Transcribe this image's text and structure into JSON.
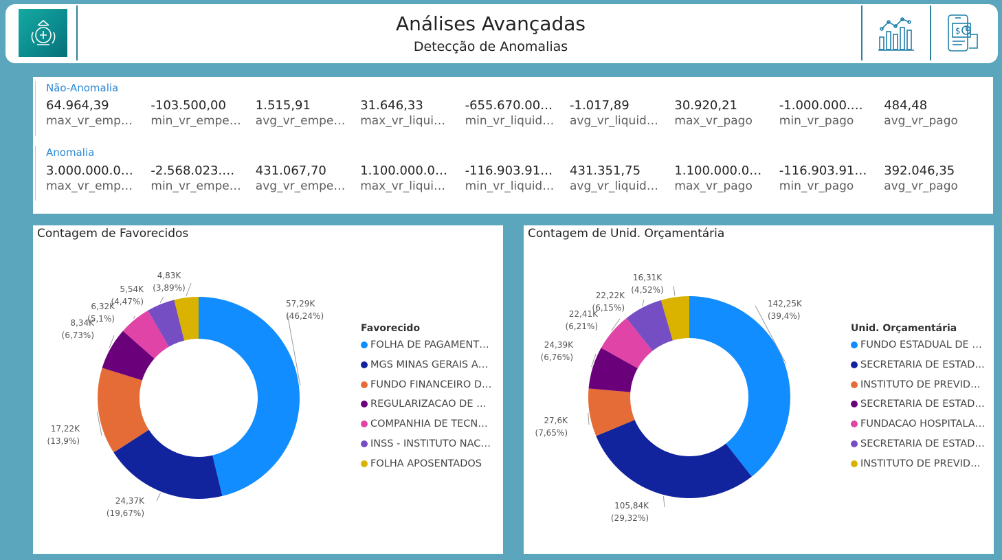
{
  "header": {
    "title": "Análises Avançadas",
    "subtitle": "Detecção de Anomalias",
    "icons": [
      "chart-analytics-icon",
      "mobile-finance-icon"
    ]
  },
  "kpis": {
    "nao_anomalia": {
      "label": "Não-Anomalia",
      "items": [
        {
          "value": "64.964,39",
          "label": "max_vr_empe…"
        },
        {
          "value": "-103.500,00",
          "label": "min_vr_empe…"
        },
        {
          "value": "1.515,91",
          "label": "avg_vr_empen…"
        },
        {
          "value": "31.646,33",
          "label": "max_vr_liquid…"
        },
        {
          "value": "-655.670.000,00",
          "label": "min_vr_liquida…"
        },
        {
          "value": "-1.017,89",
          "label": "avg_vr_liquida…"
        },
        {
          "value": "30.920,21",
          "label": "max_vr_pago"
        },
        {
          "value": "-1.000.000.00…",
          "label": "min_vr_pago"
        },
        {
          "value": "484,48",
          "label": "avg_vr_pago"
        }
      ]
    },
    "anomalia": {
      "label": "Anomalia",
      "items": [
        {
          "value": "3.000.000.000,…",
          "label": "max_vr_empe…"
        },
        {
          "value": "-2.568.023.36…",
          "label": "min_vr_empe…"
        },
        {
          "value": "431.067,70",
          "label": "avg_vr_empen…"
        },
        {
          "value": "1.100.000.000,…",
          "label": "max_vr_liquid…"
        },
        {
          "value": "-116.903.918,98",
          "label": "min_vr_liquida…"
        },
        {
          "value": "431.351,75",
          "label": "avg_vr_liquida…"
        },
        {
          "value": "1.100.000.000,…",
          "label": "max_vr_pago"
        },
        {
          "value": "-116.903.918,98",
          "label": "min_vr_pago"
        },
        {
          "value": "392.046,35",
          "label": "avg_vr_pago"
        }
      ]
    }
  },
  "chart_data": [
    {
      "type": "pie",
      "donut": true,
      "title": "Contagem de Favorecidos",
      "legend_title": "Favorecido",
      "legend_position": "right",
      "categories": [
        "FOLHA DE PAGAMENTO…",
        "MGS MINAS GERAIS AD…",
        "FUNDO FINANCEIRO DE…",
        "REGULARIZACAO DE BL…",
        "COMPANHIA DE TECNO…",
        "INSS - INSTITUTO NACI…",
        "FOLHA APOSENTADOS"
      ],
      "values": [
        57290,
        24370,
        17220,
        8340,
        6320,
        5540,
        4830
      ],
      "labels": [
        "57,29K (46,24%)",
        "24,37K (19,67%)",
        "17,22K (13,9%)",
        "8,34K (6,73%)",
        "6,32K (5,1%)",
        "5,54K (4,47%)",
        "4,83K (3,89%)"
      ],
      "colors": [
        "#118dff",
        "#12239e",
        "#e66c37",
        "#6b007b",
        "#e044a7",
        "#744ec2",
        "#d9b300"
      ]
    },
    {
      "type": "pie",
      "donut": true,
      "title": "Contagem de Unid. Orçamentária",
      "legend_title": "Unid. Orçamentária",
      "legend_position": "right",
      "categories": [
        "FUNDO ESTADUAL DE S…",
        "SECRETARIA DE ESTADO…",
        "INSTITUTO DE PREVIDE…",
        "SECRETARIA DE ESTADO…",
        "FUNDACAO HOSPITALA…",
        "SECRETARIA DE ESTADO…",
        "INSTITUTO DE PREVIDE…"
      ],
      "values": [
        142250,
        105840,
        27600,
        24390,
        22410,
        22220,
        16310
      ],
      "labels": [
        "142,25K (39,4%)",
        "105,84K (29,32%)",
        "27,6K (7,65%)",
        "24,39K (6,76%)",
        "22,41K (6,21%)",
        "22,22K (6,15%)",
        "16,31K (4,52%)"
      ],
      "colors": [
        "#118dff",
        "#12239e",
        "#e66c37",
        "#6b007b",
        "#e044a7",
        "#744ec2",
        "#d9b300"
      ]
    }
  ]
}
